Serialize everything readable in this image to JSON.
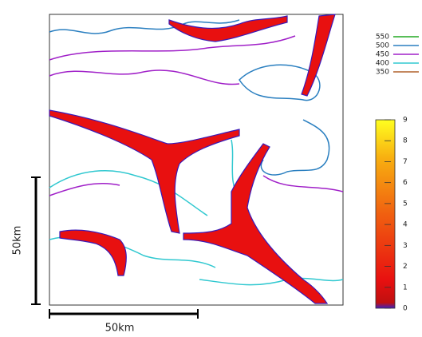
{
  "map": {
    "contour_legend": [
      {
        "value": 550,
        "color": "#22a822"
      },
      {
        "value": 500,
        "color": "#2a7fc0"
      },
      {
        "value": 450,
        "color": "#a020c8"
      },
      {
        "value": 400,
        "color": "#30c8d0"
      },
      {
        "value": 350,
        "color": "#b0602a"
      }
    ],
    "colorbar": {
      "range": [
        0,
        9
      ],
      "ticks": [
        0,
        1,
        2,
        3,
        4,
        5,
        6,
        7,
        8,
        9
      ]
    },
    "scale_bar_vertical": "50km",
    "scale_bar_horizontal": "50km"
  }
}
